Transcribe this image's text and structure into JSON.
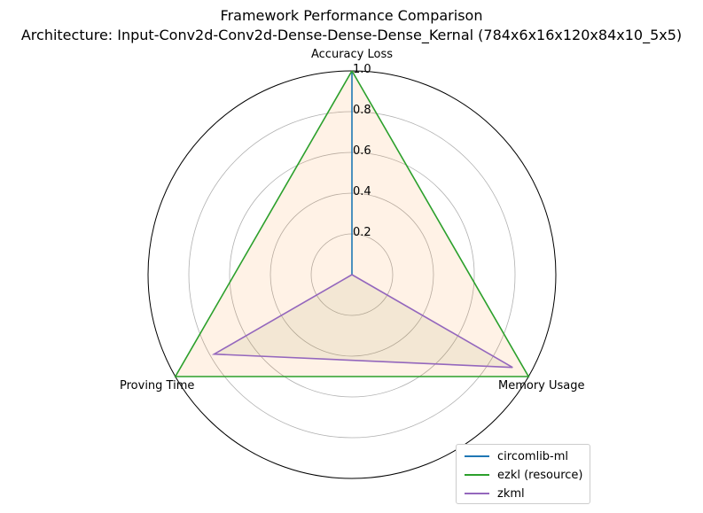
{
  "chart_data": {
    "type": "radar",
    "title": "Framework Performance Comparison",
    "subtitle": "Architecture: Input-Conv2d-Conv2d-Dense-Dense-Dense_Kernal (784x6x16x120x84x10_5x5)",
    "axes": [
      "Accuracy Loss",
      "Memory Usage",
      "Proving Time"
    ],
    "r_ticks": [
      "0.2",
      "0.4",
      "0.6",
      "0.8",
      "1.0"
    ],
    "r_range": [
      0,
      1.0
    ],
    "grid": true,
    "legend_position": "lower-right",
    "series": [
      {
        "name": "circomlib-ml",
        "color": "#1f77b4",
        "fill": false,
        "values": [
          1.0,
          0.0,
          0.0
        ]
      },
      {
        "name": "ezkl (resource)",
        "color": "#2ca02c",
        "fill": true,
        "fill_color": "#ff7f0e",
        "values": [
          1.0,
          1.0,
          1.0
        ]
      },
      {
        "name": "zkml",
        "color": "#9467bd",
        "fill": true,
        "fill_color": "#8c8c3a",
        "values": [
          0.0,
          0.91,
          0.78
        ]
      }
    ]
  }
}
